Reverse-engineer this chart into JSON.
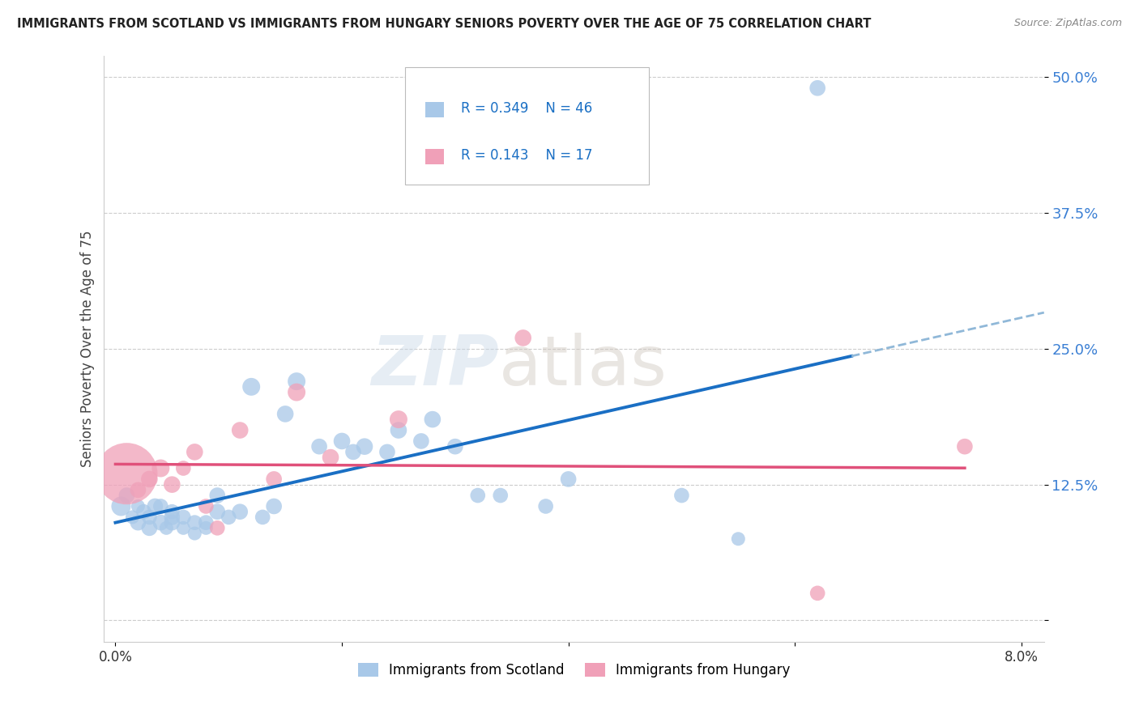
{
  "title": "IMMIGRANTS FROM SCOTLAND VS IMMIGRANTS FROM HUNGARY SENIORS POVERTY OVER THE AGE OF 75 CORRELATION CHART",
  "source": "Source: ZipAtlas.com",
  "ylabel": "Seniors Poverty Over the Age of 75",
  "scotland_R": 0.349,
  "scotland_N": 46,
  "hungary_R": 0.143,
  "hungary_N": 17,
  "scotland_color": "#a8c8e8",
  "hungary_color": "#f0a0b8",
  "scotland_line_color": "#1a6fc4",
  "hungary_line_color": "#e0507a",
  "trend_ext_color": "#90b8d8",
  "xlim": [
    -0.001,
    0.082
  ],
  "ylim": [
    -0.02,
    0.52
  ],
  "yticks": [
    0.0,
    0.125,
    0.25,
    0.375,
    0.5
  ],
  "ytick_labels": [
    "",
    "12.5%",
    "25.0%",
    "37.5%",
    "50.0%"
  ],
  "xticks": [
    0.0,
    0.02,
    0.04,
    0.06,
    0.08
  ],
  "xtick_labels": [
    "0.0%",
    "",
    "",
    "",
    "8.0%"
  ],
  "watermark_zip": "ZIP",
  "watermark_atlas": "atlas",
  "scotland_x": [
    0.0005,
    0.001,
    0.0015,
    0.002,
    0.002,
    0.0025,
    0.003,
    0.003,
    0.0035,
    0.004,
    0.004,
    0.0045,
    0.005,
    0.005,
    0.005,
    0.006,
    0.006,
    0.007,
    0.007,
    0.008,
    0.008,
    0.009,
    0.009,
    0.01,
    0.011,
    0.012,
    0.013,
    0.014,
    0.015,
    0.016,
    0.018,
    0.02,
    0.021,
    0.022,
    0.024,
    0.025,
    0.027,
    0.028,
    0.03,
    0.032,
    0.034,
    0.038,
    0.04,
    0.05,
    0.055,
    0.062
  ],
  "scotland_y": [
    0.105,
    0.115,
    0.095,
    0.09,
    0.105,
    0.1,
    0.085,
    0.095,
    0.105,
    0.09,
    0.105,
    0.085,
    0.095,
    0.1,
    0.09,
    0.085,
    0.095,
    0.08,
    0.09,
    0.085,
    0.09,
    0.1,
    0.115,
    0.095,
    0.1,
    0.215,
    0.095,
    0.105,
    0.19,
    0.22,
    0.16,
    0.165,
    0.155,
    0.16,
    0.155,
    0.175,
    0.165,
    0.185,
    0.16,
    0.115,
    0.115,
    0.105,
    0.13,
    0.115,
    0.075,
    0.49
  ],
  "scotland_size": [
    300,
    200,
    150,
    200,
    150,
    180,
    200,
    180,
    200,
    200,
    180,
    150,
    200,
    180,
    200,
    150,
    180,
    150,
    180,
    150,
    180,
    200,
    200,
    180,
    200,
    250,
    180,
    200,
    220,
    250,
    200,
    220,
    200,
    220,
    200,
    220,
    200,
    220,
    200,
    180,
    180,
    180,
    200,
    180,
    150,
    200
  ],
  "hungary_x": [
    0.001,
    0.002,
    0.003,
    0.004,
    0.005,
    0.006,
    0.007,
    0.008,
    0.009,
    0.011,
    0.014,
    0.016,
    0.019,
    0.025,
    0.036,
    0.062,
    0.075
  ],
  "hungary_y": [
    0.135,
    0.12,
    0.13,
    0.14,
    0.125,
    0.14,
    0.155,
    0.105,
    0.085,
    0.175,
    0.13,
    0.21,
    0.15,
    0.185,
    0.26,
    0.025,
    0.16
  ],
  "hungary_size": [
    3000,
    200,
    220,
    250,
    220,
    180,
    220,
    180,
    180,
    220,
    200,
    250,
    220,
    250,
    220,
    180,
    200
  ],
  "legend_label_scotland": "Immigrants from Scotland",
  "legend_label_hungary": "Immigrants from Hungary"
}
